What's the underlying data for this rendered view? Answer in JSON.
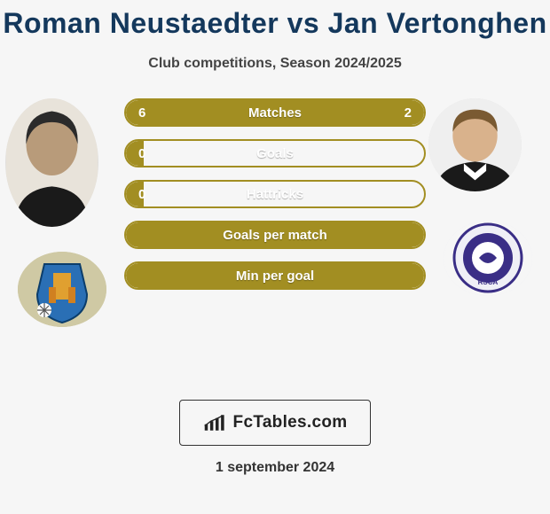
{
  "colors": {
    "title": "#14385c",
    "bar_fill": "#a28e22",
    "bar_border": "#a28e22",
    "background": "#f6f6f6"
  },
  "title": "Roman Neustaedter vs Jan Vertonghen",
  "subtitle": "Club competitions, Season 2024/2025",
  "player_left": {
    "name": "Roman Neustaedter"
  },
  "player_right": {
    "name": "Jan Vertonghen"
  },
  "bars": [
    {
      "label": "Matches",
      "left": "6",
      "right": "2",
      "left_pct": 75,
      "right_pct": 25,
      "show_left": true,
      "show_right": true
    },
    {
      "label": "Goals",
      "left": "0",
      "right": "",
      "left_pct": 6,
      "right_pct": 0,
      "show_left": true,
      "show_right": false
    },
    {
      "label": "Hattricks",
      "left": "0",
      "right": "",
      "left_pct": 6,
      "right_pct": 0,
      "show_left": true,
      "show_right": false
    },
    {
      "label": "Goals per match",
      "left": "",
      "right": "",
      "left_pct": 100,
      "right_pct": 0,
      "show_left": false,
      "show_right": false
    },
    {
      "label": "Min per goal",
      "left": "",
      "right": "",
      "left_pct": 100,
      "right_pct": 0,
      "show_left": false,
      "show_right": false
    }
  ],
  "brand": "FcTables.com",
  "date": "1 september 2024"
}
